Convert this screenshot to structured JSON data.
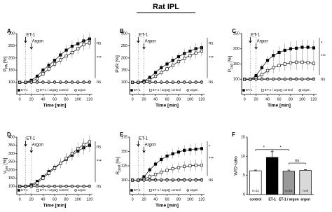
{
  "title": "Rat IPL",
  "chart_data": [
    {
      "type": "line",
      "label": "A",
      "ylabel": {
        "main": "P",
        "sub": "PA",
        "unit": " [%]"
      },
      "xlabel": "Time [min]",
      "x": [
        0,
        10,
        20,
        30,
        40,
        50,
        60,
        70,
        80,
        90,
        100,
        110,
        120
      ],
      "xlim": [
        -5,
        125
      ],
      "xticks": [
        0,
        20,
        40,
        60,
        80,
        100,
        120
      ],
      "ylim": [
        50,
        300
      ],
      "yticks": [
        100,
        150,
        200,
        250,
        300
      ],
      "events": [
        {
          "label": "ET-1",
          "x": 10
        },
        {
          "label": "Argon",
          "x": 20
        }
      ],
      "sig": [
        "ns",
        "***",
        "ns"
      ],
      "series": [
        {
          "name": "ET-1",
          "marker": "square",
          "color": "#000000",
          "values": [
            100,
            100,
            108,
            125,
            150,
            170,
            190,
            212,
            232,
            248,
            258,
            270,
            278
          ],
          "errors": [
            3,
            3,
            5,
            8,
            10,
            12,
            15,
            18,
            20,
            22,
            22,
            25,
            25
          ]
        },
        {
          "name": "ET-1 / argon",
          "marker": "square",
          "color": "#ffffff",
          "values": [
            100,
            100,
            103,
            115,
            135,
            155,
            175,
            192,
            208,
            222,
            238,
            255,
            262
          ],
          "errors": [
            3,
            3,
            5,
            8,
            10,
            12,
            15,
            18,
            20,
            22,
            22,
            25,
            25
          ]
        },
        {
          "name": "control",
          "marker": "circle",
          "color": "#ffffff",
          "values": [
            100,
            100,
            100,
            101,
            101,
            100,
            101,
            100,
            101,
            101,
            100,
            101,
            101
          ]
        },
        {
          "name": "argon",
          "marker": "circle",
          "color": "#bbbbbb",
          "values": [
            100,
            100,
            100,
            100,
            100,
            101,
            100,
            101,
            100,
            100,
            101,
            100,
            100
          ]
        }
      ]
    },
    {
      "type": "line",
      "label": "B",
      "ylabel": "PVR [%]",
      "xlabel": "Time [min]",
      "x": [
        0,
        10,
        20,
        30,
        40,
        50,
        60,
        70,
        80,
        90,
        100,
        110,
        120
      ],
      "xlim": [
        -5,
        125
      ],
      "xticks": [
        0,
        20,
        40,
        60,
        80,
        100,
        120
      ],
      "ylim": [
        50,
        300
      ],
      "yticks": [
        100,
        150,
        200,
        250,
        300
      ],
      "events": [
        {
          "label": "ET-1",
          "x": 10
        },
        {
          "label": "Argon",
          "x": 20
        }
      ],
      "sig": [
        "ns",
        "***",
        "ns"
      ],
      "series": [
        {
          "name": "ET-1",
          "marker": "square",
          "color": "#000000",
          "values": [
            100,
            100,
            105,
            120,
            140,
            160,
            175,
            190,
            205,
            218,
            228,
            238,
            242
          ],
          "errors": [
            3,
            3,
            5,
            8,
            10,
            12,
            14,
            16,
            18,
            20,
            20,
            22,
            22
          ]
        },
        {
          "name": "ET-1 / argon",
          "marker": "square",
          "color": "#ffffff",
          "values": [
            100,
            100,
            102,
            110,
            125,
            140,
            155,
            170,
            185,
            198,
            210,
            220,
            228
          ],
          "errors": [
            3,
            3,
            5,
            8,
            10,
            12,
            14,
            16,
            18,
            20,
            20,
            22,
            22
          ]
        },
        {
          "name": "control",
          "marker": "circle",
          "color": "#ffffff",
          "values": [
            100,
            100,
            100,
            101,
            101,
            100,
            101,
            100,
            101,
            101,
            100,
            101,
            101
          ]
        },
        {
          "name": "argon",
          "marker": "circle",
          "color": "#bbbbbb",
          "values": [
            100,
            100,
            100,
            100,
            100,
            101,
            100,
            101,
            100,
            100,
            101,
            100,
            100
          ]
        }
      ]
    },
    {
      "type": "line",
      "label": "C",
      "ylabel": {
        "main": "P",
        "sub": "cap",
        "unit": " [%]"
      },
      "xlabel": "Time [min]",
      "x": [
        0,
        10,
        20,
        30,
        40,
        50,
        60,
        70,
        80,
        90,
        100,
        110,
        120
      ],
      "xlim": [
        -5,
        125
      ],
      "xticks": [
        0,
        20,
        40,
        60,
        80,
        100,
        120
      ],
      "ylim": [
        50,
        250
      ],
      "yticks": [
        100,
        150,
        200,
        250
      ],
      "events": [
        {
          "label": "ET-1",
          "x": 10
        },
        {
          "label": "Argon",
          "x": 20
        }
      ],
      "sig": [
        "*",
        "***",
        "ns"
      ],
      "series": [
        {
          "name": "ET-1",
          "marker": "square",
          "color": "#000000",
          "values": [
            100,
            100,
            112,
            138,
            162,
            178,
            188,
            195,
            200,
            202,
            205,
            205,
            203
          ],
          "errors": [
            3,
            3,
            6,
            10,
            14,
            18,
            20,
            22,
            24,
            25,
            25,
            25,
            25
          ]
        },
        {
          "name": "ET-1 / argon",
          "marker": "square",
          "color": "#ffffff",
          "values": [
            100,
            100,
            104,
            115,
            128,
            138,
            145,
            150,
            154,
            156,
            156,
            155,
            152
          ],
          "errors": [
            3,
            3,
            6,
            10,
            14,
            18,
            20,
            22,
            24,
            25,
            25,
            25,
            25
          ]
        },
        {
          "name": "control",
          "marker": "circle",
          "color": "#ffffff",
          "values": [
            100,
            100,
            100,
            101,
            101,
            100,
            101,
            100,
            101,
            101,
            100,
            101,
            101
          ]
        },
        {
          "name": "argon",
          "marker": "circle",
          "color": "#bbbbbb",
          "values": [
            100,
            100,
            100,
            100,
            100,
            101,
            100,
            101,
            100,
            100,
            101,
            100,
            100
          ]
        }
      ]
    },
    {
      "type": "line",
      "label": "D",
      "ylabel": {
        "main": "V",
        "sub": "pre",
        "unit": " [%]"
      },
      "xlabel": "Time [min]",
      "x": [
        0,
        10,
        20,
        30,
        40,
        50,
        60,
        70,
        80,
        90,
        100,
        110,
        120
      ],
      "xlim": [
        -5,
        125
      ],
      "xticks": [
        0,
        20,
        40,
        60,
        80,
        100,
        120
      ],
      "ylim": [
        50,
        400
      ],
      "yticks": [
        100,
        150,
        200,
        250,
        300,
        350,
        400
      ],
      "events": [
        {
          "label": "ET-1",
          "x": 10
        },
        {
          "label": "Argon",
          "x": 20
        }
      ],
      "sig": [
        "ns",
        "***",
        "ns"
      ],
      "series": [
        {
          "name": "ET-1",
          "marker": "square",
          "color": "#000000",
          "values": [
            100,
            100,
            108,
            130,
            160,
            190,
            215,
            240,
            265,
            290,
            315,
            335,
            350
          ],
          "errors": [
            3,
            3,
            6,
            10,
            15,
            20,
            25,
            30,
            32,
            35,
            38,
            40,
            40
          ]
        },
        {
          "name": "ET-1 / argon",
          "marker": "square",
          "color": "#ffffff",
          "values": [
            100,
            100,
            104,
            120,
            150,
            180,
            210,
            240,
            270,
            300,
            330,
            355,
            372
          ],
          "errors": [
            3,
            3,
            6,
            10,
            15,
            20,
            25,
            30,
            32,
            35,
            38,
            40,
            40
          ]
        },
        {
          "name": "control",
          "marker": "circle",
          "color": "#ffffff",
          "values": [
            100,
            100,
            100,
            101,
            101,
            100,
            101,
            100,
            101,
            101,
            100,
            101,
            101
          ]
        },
        {
          "name": "argon",
          "marker": "circle",
          "color": "#bbbbbb",
          "values": [
            100,
            100,
            100,
            100,
            100,
            101,
            100,
            101,
            100,
            100,
            101,
            100,
            100
          ]
        }
      ]
    },
    {
      "type": "line",
      "label": "E",
      "ylabel": {
        "main": "R",
        "sub": "post",
        "unit": " [%]"
      },
      "xlabel": "Time [min]",
      "x": [
        0,
        10,
        20,
        30,
        40,
        50,
        60,
        70,
        80,
        90,
        100,
        110,
        120
      ],
      "xlim": [
        -5,
        125
      ],
      "xticks": [
        0,
        20,
        40,
        60,
        80,
        100,
        120
      ],
      "ylim": [
        75,
        175
      ],
      "yticks": [
        100,
        125,
        150,
        175
      ],
      "events": [
        {
          "label": "ET-1",
          "x": 10
        },
        {
          "label": "Argon",
          "x": 20
        }
      ],
      "sig": [
        "*",
        "***",
        "ns"
      ],
      "series": [
        {
          "name": "ET-1",
          "marker": "square",
          "color": "#000000",
          "values": [
            100,
            100,
            106,
            118,
            128,
            136,
            142,
            146,
            149,
            152,
            153,
            154,
            155
          ],
          "errors": [
            2,
            2,
            3,
            5,
            6,
            7,
            8,
            8,
            9,
            9,
            10,
            10,
            10
          ]
        },
        {
          "name": "ET-1 / argon",
          "marker": "square",
          "color": "#ffffff",
          "values": [
            100,
            100,
            102,
            106,
            110,
            114,
            117,
            120,
            122,
            124,
            125,
            126,
            126
          ],
          "errors": [
            2,
            2,
            3,
            5,
            6,
            7,
            8,
            8,
            9,
            9,
            10,
            10,
            10
          ]
        },
        {
          "name": "control",
          "marker": "circle",
          "color": "#ffffff",
          "values": [
            100,
            100,
            100,
            101,
            101,
            100,
            101,
            100,
            101,
            101,
            100,
            101,
            101
          ]
        },
        {
          "name": "argon",
          "marker": "circle",
          "color": "#bbbbbb",
          "values": [
            100,
            100,
            100,
            100,
            100,
            101,
            100,
            101,
            100,
            100,
            101,
            100,
            100
          ]
        }
      ]
    },
    {
      "type": "bar",
      "label": "F",
      "ylabel": "W/D-ratio",
      "categories": [
        "control",
        "ET-1",
        "ET-1 / argon",
        "argon"
      ],
      "values": [
        6.2,
        9.7,
        6.1,
        6.3
      ],
      "errors": [
        0.2,
        1.5,
        0.3,
        0.2
      ],
      "colors": [
        "#ffffff",
        "#000000",
        "#999999",
        "#d9d9d9"
      ],
      "n_labels": [
        "n=11",
        "n=10",
        "n=10",
        "n=8"
      ],
      "ylim": [
        0,
        15
      ],
      "yticks": [
        0,
        5,
        10,
        15
      ],
      "sig": [
        "*",
        "*",
        "ns"
      ]
    }
  ]
}
